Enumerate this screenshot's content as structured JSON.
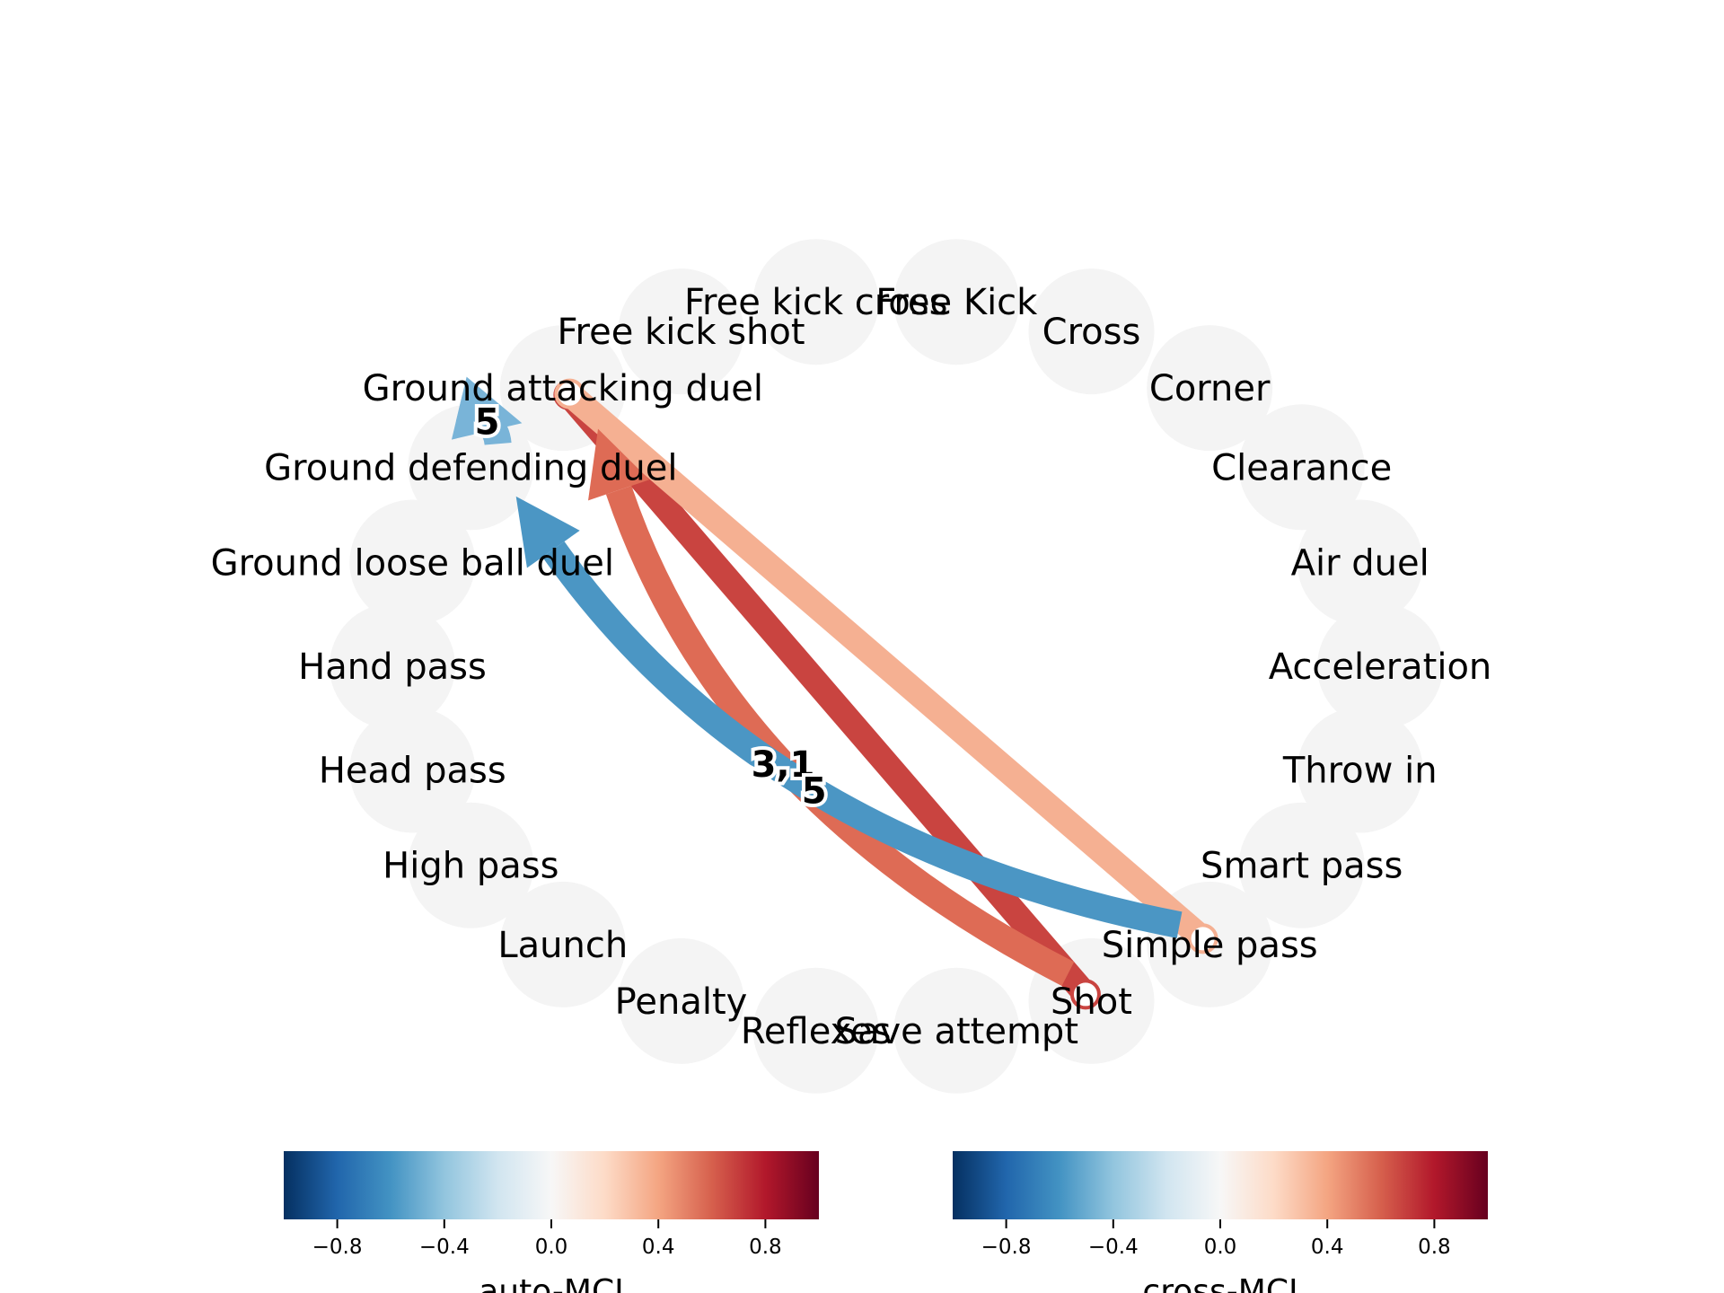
{
  "graph": {
    "nodes": [
      "Free kick cross",
      "Free Kick",
      "Cross",
      "Corner",
      "Clearance",
      "Air duel",
      "Acceleration",
      "Throw in",
      "Smart pass",
      "Simple pass",
      "Shot",
      "Save attempt",
      "Reflexes",
      "Penalty",
      "Launch",
      "High pass",
      "Head pass",
      "Hand pass",
      "Ground loose ball duel",
      "Ground defending duel",
      "Ground attacking duel",
      "Free kick shot"
    ],
    "node_color": "#f4f4f4",
    "links": [
      {
        "source": "Shot",
        "target": "Ground attacking duel",
        "style": "line",
        "color": "#c94440",
        "lag": ""
      },
      {
        "source": "Simple pass",
        "target": "Ground attacking duel",
        "style": "line",
        "color": "#f5b092",
        "lag": ""
      },
      {
        "source": "Shot",
        "target": "Ground attacking duel",
        "style": "arrow",
        "color": "#de6b55",
        "lag": "3,1"
      },
      {
        "source": "Simple pass",
        "target": "Ground defending duel",
        "style": "arrow",
        "color": "#4b96c4",
        "lag": "5"
      },
      {
        "source": "Ground defending duel",
        "target": "Ground attacking duel",
        "style": "arrow",
        "color": "#79b4d8",
        "lag": "5"
      }
    ]
  },
  "colorbars": [
    {
      "label": "auto-MCI",
      "ticks": [
        "−0.8",
        "−0.4",
        "0.0",
        "0.4",
        "0.8"
      ],
      "colormap": "RdBu_r"
    },
    {
      "label": "cross-MCI",
      "ticks": [
        "−0.8",
        "−0.4",
        "0.0",
        "0.4",
        "0.8"
      ],
      "colormap": "RdBu_r"
    }
  ]
}
